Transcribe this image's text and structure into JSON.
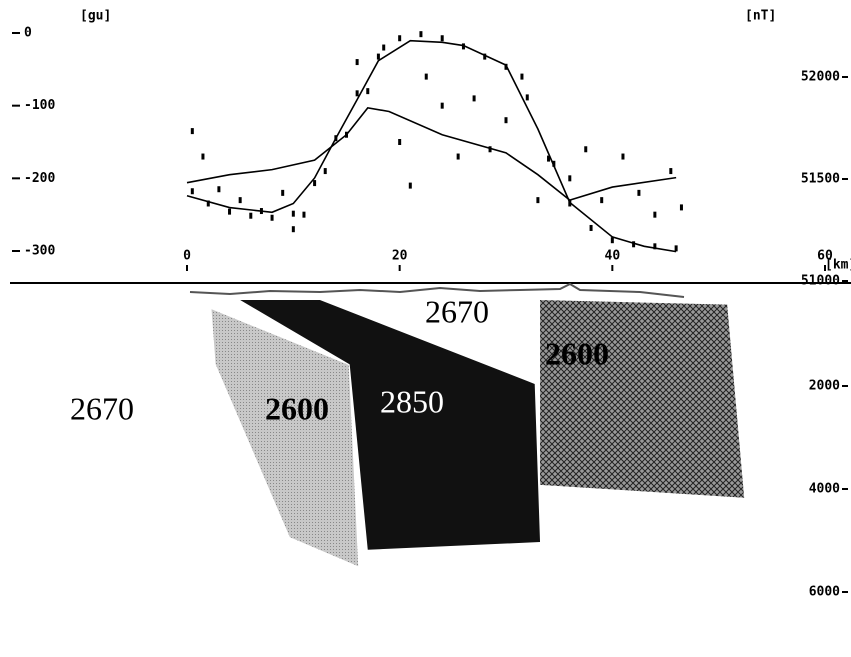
{
  "chart_data": {
    "type": "gravity-magnetic-model",
    "ylabel": "[gu]",
    "y2label": "[nT]",
    "xlabel": "[km]",
    "xlim": [
      0,
      60
    ],
    "xticks": [
      0,
      20,
      40,
      60
    ],
    "ylim": [
      -300,
      0
    ],
    "yticks": [
      0,
      -100,
      -200,
      -300
    ],
    "y2lim": [
      51000,
      52000
    ],
    "y2ticks": [
      52000,
      51500,
      51000
    ],
    "depthlim": [
      0,
      6000
    ],
    "depthticks": [
      2000,
      4000,
      6000
    ],
    "series": [
      {
        "kind": "line",
        "axis": "y",
        "color": "#000000",
        "x": [
          0,
          4,
          8,
          12,
          15,
          17,
          19,
          24,
          30,
          33,
          36,
          40,
          46
        ],
        "values": [
          -206,
          -195,
          -188,
          -175,
          -140,
          -103,
          -108,
          -140,
          -165,
          -195,
          -230,
          -212,
          -199
        ]
      },
      {
        "kind": "line",
        "axis": "y2",
        "color": "#000000",
        "x": [
          0,
          4,
          8,
          10,
          12,
          14,
          16,
          18,
          21,
          24,
          26,
          30,
          33,
          36,
          40,
          43,
          46
        ],
        "values": [
          51418,
          51360,
          51337,
          51380,
          51505,
          51700,
          51889,
          52080,
          52178,
          52170,
          52154,
          52058,
          51745,
          51385,
          51216,
          51170,
          51144
        ]
      },
      {
        "kind": "dots",
        "axis": "y2",
        "color": "#000000",
        "x": [
          0.5,
          2,
          4,
          6,
          8,
          10,
          12,
          14,
          16,
          18,
          20,
          22,
          24,
          26,
          28,
          30,
          32,
          34,
          36,
          38,
          40,
          42,
          44,
          46
        ],
        "values": [
          51440,
          51380,
          51340,
          51320,
          51310,
          51330,
          51480,
          51700,
          51920,
          52100,
          52190,
          52210,
          52190,
          52150,
          52100,
          52050,
          51900,
          51600,
          51380,
          51260,
          51200,
          51180,
          51170,
          51160
        ]
      },
      {
        "kind": "dots",
        "axis": "y",
        "color": "#000000",
        "x": [
          0.5,
          1.5,
          3,
          5,
          7,
          9,
          10,
          11,
          13,
          15,
          16,
          17,
          18.5,
          20,
          21,
          22.5,
          24,
          25.5,
          27,
          28.5,
          30,
          31.5,
          33,
          34.5,
          36,
          37.5,
          39,
          41,
          42.5,
          44,
          45.5,
          46.5
        ],
        "values": [
          -135,
          -170,
          -215,
          -230,
          -245,
          -220,
          -270,
          -250,
          -190,
          -140,
          -40,
          -80,
          -20,
          -150,
          -210,
          -60,
          -100,
          -170,
          -90,
          -160,
          -120,
          -60,
          -230,
          -180,
          -200,
          -160,
          -230,
          -170,
          -220,
          -250,
          -190,
          -240
        ]
      }
    ],
    "background_density": 2670,
    "bodies": [
      {
        "density": 2600,
        "fill": "#c8c8c8",
        "x": [
          2.2,
          15.3,
          16.2,
          9.6,
          2.6
        ],
        "depth": [
          480,
          1580,
          5530,
          4950,
          1580
        ]
      },
      {
        "density": 2850,
        "fill": "#111111",
        "x": [
          5.0,
          12.5,
          32.7,
          33.2,
          17.0,
          15.3
        ],
        "depth": [
          330,
          330,
          1960,
          5030,
          5180,
          1580
        ]
      },
      {
        "density": 2600,
        "fill": "crosshatch",
        "x": [
          33.2,
          50.8,
          52.4,
          33.2
        ],
        "depth": [
          330,
          420,
          4170,
          3920
        ]
      }
    ]
  }
}
